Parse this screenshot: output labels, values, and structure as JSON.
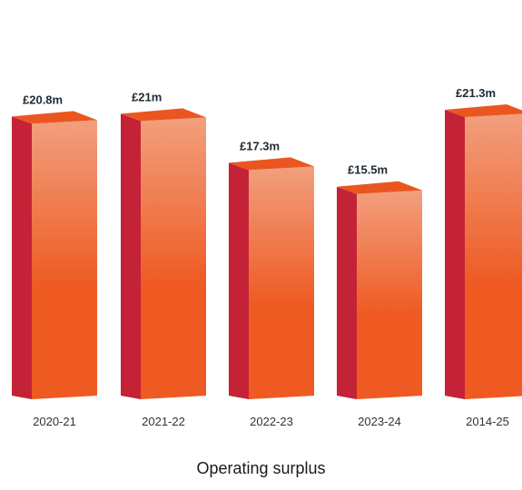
{
  "chart_data": {
    "type": "bar",
    "title": "Operating surplus",
    "categories": [
      "2020-21",
      "2021-22",
      "2022-23",
      "2023-24",
      "2014-25"
    ],
    "values": [
      20.8,
      21,
      17.3,
      15.5,
      21.3
    ],
    "data_labels": [
      "£20.8m",
      "£21m",
      "£17.3m",
      "£15.5m",
      "£21.3m"
    ],
    "unit": "£m",
    "xlabel": "",
    "ylabel": "",
    "ylim": [
      0,
      22
    ],
    "grid": false,
    "legend": "none",
    "style": "3d-bar",
    "colors": {
      "front_top": "#f29f7e",
      "front_bottom": "#ee5a22",
      "top_face": "#ea5620",
      "side_face": "#c42237",
      "label_text": "#1f2a33"
    }
  }
}
